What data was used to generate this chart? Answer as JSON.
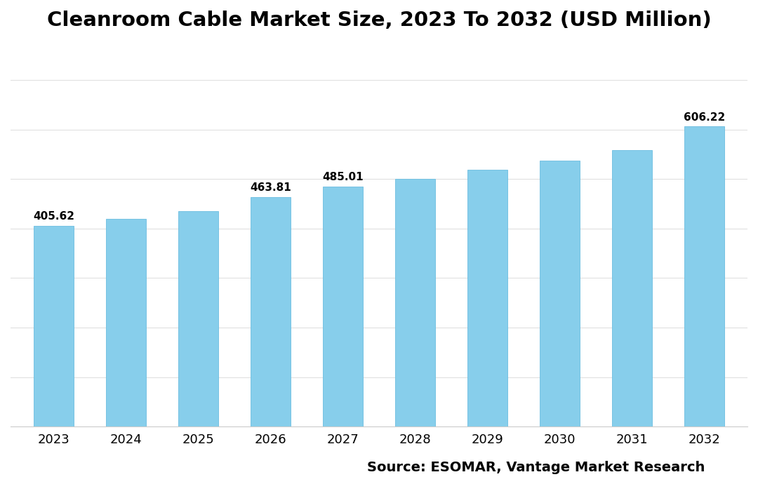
{
  "title": "Cleanroom Cable Market Size, 2023 To 2032 (USD Million)",
  "categories": [
    "2023",
    "2024",
    "2025",
    "2026",
    "2027",
    "2028",
    "2029",
    "2030",
    "2031",
    "2032"
  ],
  "values": [
    405.62,
    419.0,
    434.5,
    463.81,
    485.01,
    500.0,
    519.0,
    537.0,
    558.0,
    606.22
  ],
  "labeled_indices": [
    0,
    3,
    4,
    9
  ],
  "bar_color": "#87CEEB",
  "bar_edge_color": "#6BBDE0",
  "background_color": "#ffffff",
  "title_fontsize": 21,
  "label_fontsize": 11,
  "tick_fontsize": 13,
  "source_text": "Source: ESOMAR, Vantage Market Research",
  "source_fontsize": 14,
  "ylim": [
    0,
    750
  ],
  "grid_color": "#e0e0e0",
  "bar_width": 0.55
}
